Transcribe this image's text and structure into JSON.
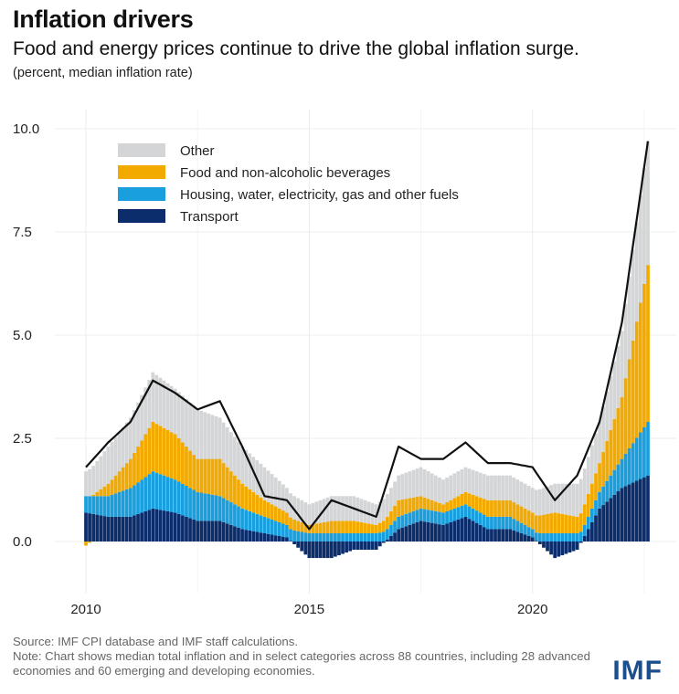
{
  "title": "Inflation drivers",
  "subtitle": "Food and energy prices continue to drive the global inflation surge.",
  "units": "(percent, median inflation rate)",
  "source": "Source: IMF CPI database and IMF staff calculations.",
  "note": "Note: Chart shows median total inflation and in select categories across 88 countries, including 28 advanced economies and 60 emerging and developing economies.",
  "logo": "IMF",
  "colors": {
    "other": "#d3d5d6",
    "food": "#f2a900",
    "housing": "#1a9fde",
    "transport": "#0c2d6b",
    "total": "#111111",
    "grid": "#ececec"
  },
  "chart_data": {
    "type": "bar",
    "stacked": true,
    "xaxis": {
      "type": "date",
      "ticks": [
        "2010",
        "2015",
        "2020"
      ],
      "range": [
        "2010-01",
        "2022-08"
      ]
    },
    "yaxis": {
      "ticks": [
        "0.0",
        "2.5",
        "5.0",
        "7.5",
        "10.0"
      ],
      "range": [
        -1.2,
        10.5
      ]
    },
    "grid": true,
    "legend": "top-left",
    "series": [
      {
        "name": "Other",
        "key": "other",
        "kind": "bar",
        "x": [
          "2010-01",
          "2010-07",
          "2011-01",
          "2011-07",
          "2012-01",
          "2012-07",
          "2013-01",
          "2013-07",
          "2014-01",
          "2014-07",
          "2015-01",
          "2015-07",
          "2016-01",
          "2016-07",
          "2017-01",
          "2017-07",
          "2018-01",
          "2018-07",
          "2019-01",
          "2019-07",
          "2020-01",
          "2020-07",
          "2021-01",
          "2021-07",
          "2022-01",
          "2022-08"
        ],
        "values": [
          0.6,
          0.9,
          1.0,
          1.2,
          1.1,
          1.2,
          1.0,
          0.9,
          0.8,
          0.6,
          0.5,
          0.6,
          0.6,
          0.5,
          0.6,
          0.7,
          0.6,
          0.6,
          0.6,
          0.6,
          0.6,
          0.7,
          0.8,
          1.0,
          1.6,
          3.0
        ]
      },
      {
        "name": "Food and non-alcoholic beverages",
        "key": "food",
        "kind": "bar",
        "x": [
          "2010-01",
          "2010-07",
          "2011-01",
          "2011-07",
          "2012-01",
          "2012-07",
          "2013-01",
          "2013-07",
          "2014-01",
          "2014-07",
          "2015-01",
          "2015-07",
          "2016-01",
          "2016-07",
          "2017-01",
          "2017-07",
          "2018-01",
          "2018-07",
          "2019-01",
          "2019-07",
          "2020-01",
          "2020-07",
          "2021-01",
          "2021-07",
          "2022-01",
          "2022-08"
        ],
        "values": [
          -0.1,
          0.3,
          0.7,
          1.2,
          1.1,
          0.8,
          0.9,
          0.6,
          0.4,
          0.3,
          0.2,
          0.3,
          0.3,
          0.2,
          0.4,
          0.3,
          0.2,
          0.3,
          0.4,
          0.4,
          0.4,
          0.5,
          0.4,
          0.7,
          1.5,
          3.8
        ]
      },
      {
        "name": "Housing, water, electricity, gas and other fuels",
        "key": "housing",
        "kind": "bar",
        "x": [
          "2010-01",
          "2010-07",
          "2011-01",
          "2011-07",
          "2012-01",
          "2012-07",
          "2013-01",
          "2013-07",
          "2014-01",
          "2014-07",
          "2015-01",
          "2015-07",
          "2016-01",
          "2016-07",
          "2017-01",
          "2017-07",
          "2018-01",
          "2018-07",
          "2019-01",
          "2019-07",
          "2020-01",
          "2020-07",
          "2021-01",
          "2021-07",
          "2022-01",
          "2022-08"
        ],
        "values": [
          0.4,
          0.5,
          0.7,
          0.9,
          0.8,
          0.7,
          0.6,
          0.5,
          0.4,
          0.3,
          0.2,
          0.2,
          0.2,
          0.2,
          0.3,
          0.3,
          0.3,
          0.3,
          0.3,
          0.3,
          0.2,
          0.2,
          0.2,
          0.4,
          0.7,
          1.3
        ]
      },
      {
        "name": "Transport",
        "key": "transport",
        "kind": "bar",
        "x": [
          "2010-01",
          "2010-07",
          "2011-01",
          "2011-07",
          "2012-01",
          "2012-07",
          "2013-01",
          "2013-07",
          "2014-01",
          "2014-07",
          "2015-01",
          "2015-07",
          "2016-01",
          "2016-07",
          "2017-01",
          "2017-07",
          "2018-01",
          "2018-07",
          "2019-01",
          "2019-07",
          "2020-01",
          "2020-07",
          "2021-01",
          "2021-07",
          "2022-01",
          "2022-08"
        ],
        "values": [
          0.7,
          0.6,
          0.6,
          0.8,
          0.7,
          0.5,
          0.5,
          0.3,
          0.2,
          0.1,
          -0.4,
          -0.4,
          -0.2,
          -0.2,
          0.3,
          0.5,
          0.4,
          0.6,
          0.3,
          0.3,
          0.1,
          -0.4,
          -0.2,
          0.8,
          1.3,
          1.6
        ]
      },
      {
        "name": "Total",
        "key": "total",
        "kind": "line",
        "legend": false,
        "x": [
          "2010-01",
          "2010-07",
          "2011-01",
          "2011-07",
          "2012-01",
          "2012-07",
          "2013-01",
          "2013-07",
          "2014-01",
          "2014-07",
          "2015-01",
          "2015-07",
          "2016-01",
          "2016-07",
          "2017-01",
          "2017-07",
          "2018-01",
          "2018-07",
          "2019-01",
          "2019-07",
          "2020-01",
          "2020-07",
          "2021-01",
          "2021-07",
          "2022-01",
          "2022-08"
        ],
        "values": [
          1.8,
          2.4,
          2.9,
          3.9,
          3.6,
          3.2,
          3.4,
          2.3,
          1.1,
          1.0,
          0.3,
          1.0,
          0.8,
          0.6,
          2.3,
          2.0,
          2.0,
          2.4,
          1.9,
          1.9,
          1.8,
          1.0,
          1.6,
          2.9,
          5.3,
          9.7
        ]
      }
    ]
  }
}
